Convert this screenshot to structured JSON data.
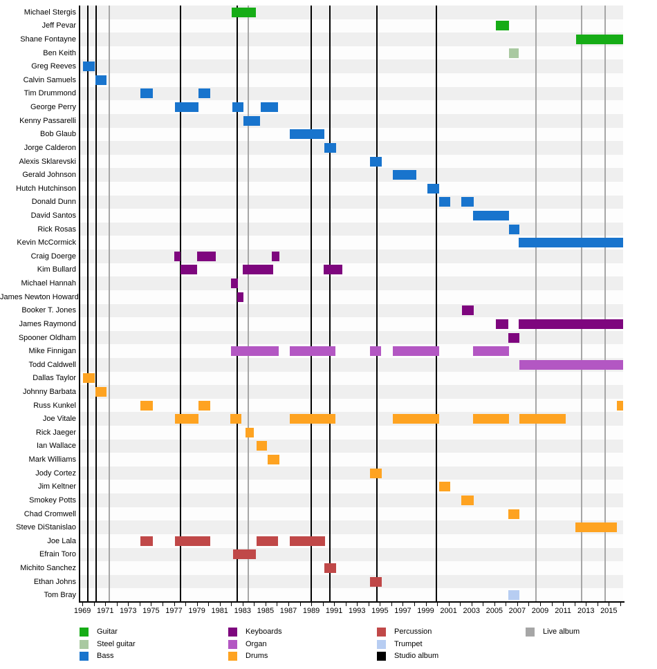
{
  "chart_data": {
    "type": "timeline",
    "description": "Band membership timeline by instrument, 1969-2016, with studio and live album release markers",
    "x_axis": {
      "start": 1968.75,
      "end": 2016.25,
      "label_years": [
        1969,
        1971,
        1973,
        1975,
        1977,
        1979,
        1981,
        1983,
        1985,
        1987,
        1989,
        1991,
        1993,
        1995,
        1997,
        1999,
        2001,
        2003,
        2005,
        2007,
        2009,
        2011,
        2013,
        2015
      ],
      "minor_tick_first": 1969,
      "minor_tick_last": 2016,
      "minor_tick_step": 1
    },
    "colors": {
      "guitar": "#16ac16",
      "steel_guitar": "#a9c9a1",
      "bass": "#1874cd",
      "keyboards": "#7e067e",
      "organ": "#b357c3",
      "drums": "#fea321",
      "percussion": "#c04848",
      "trumpet": "#b7cdf2",
      "studio_album": "#000000",
      "live_album": "#a6a6a6",
      "stripe_even": "#efefef",
      "stripe_odd": "#fdfdfd"
    },
    "albums": {
      "studio": [
        1969.5,
        1970.2,
        1977.6,
        1982.55,
        1989.0,
        1990.65,
        1994.75,
        1999.95
      ],
      "live": [
        1971.35,
        1983.5,
        2008.65,
        2012.65,
        2014.7
      ]
    },
    "members": [
      {
        "name": "Michael Stergis",
        "instrument": "guitar",
        "periods": [
          [
            1982.05,
            1984.15
          ]
        ]
      },
      {
        "name": "Jeff Pevar",
        "instrument": "guitar",
        "periods": [
          [
            2005.15,
            2006.25
          ]
        ]
      },
      {
        "name": "Shane Fontayne",
        "instrument": "guitar",
        "periods": [
          [
            2012.15,
            2016.25
          ]
        ]
      },
      {
        "name": "Ben Keith",
        "instrument": "steel_guitar",
        "periods": [
          [
            2006.25,
            2007.15
          ]
        ]
      },
      {
        "name": "Greg Reeves",
        "instrument": "bass",
        "periods": [
          [
            1969.05,
            1970.1
          ]
        ]
      },
      {
        "name": "Calvin Samuels",
        "instrument": "bass",
        "periods": [
          [
            1970.15,
            1971.1
          ]
        ]
      },
      {
        "name": "Tim Drummond",
        "instrument": "bass",
        "periods": [
          [
            1974.05,
            1975.15
          ],
          [
            1979.15,
            1980.15
          ]
        ]
      },
      {
        "name": "George Perry",
        "instrument": "bass",
        "periods": [
          [
            1977.1,
            1979.15
          ],
          [
            1982.1,
            1983.1
          ],
          [
            1984.6,
            1986.1
          ]
        ]
      },
      {
        "name": "Kenny Passarelli",
        "instrument": "bass",
        "periods": [
          [
            1983.1,
            1984.55
          ]
        ]
      },
      {
        "name": "Bob Glaub",
        "instrument": "bass",
        "periods": [
          [
            1987.15,
            1990.15
          ]
        ]
      },
      {
        "name": "Jorge Calderon",
        "instrument": "bass",
        "periods": [
          [
            1990.15,
            1991.15
          ]
        ]
      },
      {
        "name": "Alexis Sklarevski",
        "instrument": "bass",
        "periods": [
          [
            1994.15,
            1995.15
          ]
        ]
      },
      {
        "name": "Gerald Johnson",
        "instrument": "bass",
        "periods": [
          [
            1996.15,
            1998.2
          ]
        ]
      },
      {
        "name": "Hutch Hutchinson",
        "instrument": "bass",
        "periods": [
          [
            1999.15,
            2000.15
          ]
        ]
      },
      {
        "name": "Donald Dunn",
        "instrument": "bass",
        "periods": [
          [
            2000.2,
            2001.15
          ],
          [
            2002.1,
            2003.2
          ]
        ]
      },
      {
        "name": "David Santos",
        "instrument": "bass",
        "periods": [
          [
            2003.15,
            2006.25
          ]
        ]
      },
      {
        "name": "Rick Rosas",
        "instrument": "bass",
        "periods": [
          [
            2006.25,
            2007.2
          ]
        ]
      },
      {
        "name": "Kevin McCormick",
        "instrument": "bass",
        "periods": [
          [
            2007.1,
            2016.25
          ]
        ]
      },
      {
        "name": "Craig Doerge",
        "instrument": "keyboards",
        "periods": [
          [
            1977.05,
            1977.55
          ],
          [
            1979.05,
            1980.65
          ],
          [
            1985.55,
            1986.2
          ]
        ]
      },
      {
        "name": "Kim Bullard",
        "instrument": "keyboards",
        "periods": [
          [
            1977.6,
            1979.05
          ],
          [
            1983.0,
            1985.7
          ],
          [
            1990.1,
            1991.7
          ]
        ]
      },
      {
        "name": "Michael Hannah",
        "instrument": "keyboards",
        "periods": [
          [
            1982.0,
            1982.6
          ]
        ]
      },
      {
        "name": "James Newton Howard",
        "instrument": "keyboards",
        "periods": [
          [
            1982.55,
            1983.05
          ]
        ]
      },
      {
        "name": "Booker T. Jones",
        "instrument": "keyboards",
        "periods": [
          [
            2002.15,
            2003.2
          ]
        ]
      },
      {
        "name": "James Raymond",
        "instrument": "keyboards",
        "periods": [
          [
            2005.15,
            2006.2
          ],
          [
            2007.15,
            2016.25
          ]
        ]
      },
      {
        "name": "Spooner Oldham",
        "instrument": "keyboards",
        "periods": [
          [
            2006.2,
            2007.2
          ]
        ]
      },
      {
        "name": "Mike Finnigan",
        "instrument": "organ",
        "periods": [
          [
            1982.0,
            1986.15
          ],
          [
            1987.1,
            1991.1
          ],
          [
            1994.15,
            1995.1
          ],
          [
            1996.1,
            2000.2
          ],
          [
            2003.15,
            2006.25
          ]
        ]
      },
      {
        "name": "Todd Caldwell",
        "instrument": "organ",
        "periods": [
          [
            2007.2,
            2016.25
          ]
        ]
      },
      {
        "name": "Dallas Taylor",
        "instrument": "drums",
        "periods": [
          [
            1969.05,
            1970.1
          ]
        ]
      },
      {
        "name": "Johnny Barbata",
        "instrument": "drums",
        "periods": [
          [
            1970.15,
            1971.1
          ]
        ]
      },
      {
        "name": "Russ Kunkel",
        "instrument": "drums",
        "periods": [
          [
            1974.05,
            1975.15
          ],
          [
            1979.15,
            1980.15
          ],
          [
            2015.7,
            2016.25
          ]
        ]
      },
      {
        "name": "Joe Vitale",
        "instrument": "drums",
        "periods": [
          [
            1977.1,
            1979.15
          ],
          [
            1981.95,
            1982.9
          ],
          [
            1987.1,
            1991.1
          ],
          [
            1996.1,
            2000.2
          ],
          [
            2003.15,
            2006.25
          ],
          [
            2007.2,
            2011.25
          ]
        ]
      },
      {
        "name": "Rick Jaeger",
        "instrument": "drums",
        "periods": [
          [
            1983.25,
            1983.95
          ]
        ]
      },
      {
        "name": "Ian Wallace",
        "instrument": "drums",
        "periods": [
          [
            1984.25,
            1985.1
          ]
        ]
      },
      {
        "name": "Mark Williams",
        "instrument": "drums",
        "periods": [
          [
            1985.2,
            1986.2
          ]
        ]
      },
      {
        "name": "Jody Cortez",
        "instrument": "drums",
        "periods": [
          [
            1994.15,
            1995.15
          ]
        ]
      },
      {
        "name": "Jim Keltner",
        "instrument": "drums",
        "periods": [
          [
            2000.15,
            2001.15
          ]
        ]
      },
      {
        "name": "Smokey Potts",
        "instrument": "drums",
        "periods": [
          [
            2002.1,
            2003.2
          ]
        ]
      },
      {
        "name": "Chad Cromwell",
        "instrument": "drums",
        "periods": [
          [
            2006.2,
            2007.2
          ]
        ]
      },
      {
        "name": "Steve DiStanislao",
        "instrument": "drums",
        "periods": [
          [
            2012.1,
            2015.7
          ]
        ]
      },
      {
        "name": "Joe Lala",
        "instrument": "percussion",
        "periods": [
          [
            1974.05,
            1975.15
          ],
          [
            1977.1,
            1980.15
          ],
          [
            1984.25,
            1986.1
          ],
          [
            1987.1,
            1990.2
          ]
        ]
      },
      {
        "name": "Efrain Toro",
        "instrument": "percussion",
        "periods": [
          [
            1982.15,
            1984.15
          ]
        ]
      },
      {
        "name": "Michito Sanchez",
        "instrument": "percussion",
        "periods": [
          [
            1990.15,
            1991.15
          ]
        ]
      },
      {
        "name": "Ethan Johns",
        "instrument": "percussion",
        "periods": [
          [
            1994.15,
            1995.15
          ]
        ]
      },
      {
        "name": "Tom Bray",
        "instrument": "trumpet",
        "periods": [
          [
            2006.2,
            2007.2
          ]
        ]
      }
    ],
    "legend": {
      "columns": [
        [
          {
            "label": "Guitar",
            "color": "guitar"
          },
          {
            "label": "Steel guitar",
            "color": "steel_guitar"
          },
          {
            "label": "Bass",
            "color": "bass"
          }
        ],
        [
          {
            "label": "Keyboards",
            "color": "keyboards"
          },
          {
            "label": "Organ",
            "color": "organ"
          },
          {
            "label": "Drums",
            "color": "drums"
          }
        ],
        [
          {
            "label": "Percussion",
            "color": "percussion"
          },
          {
            "label": "Trumpet",
            "color": "trumpet"
          },
          {
            "label": "Studio album",
            "color": "studio_album"
          }
        ],
        [
          {
            "label": "Live album",
            "color": "live_album"
          }
        ]
      ]
    }
  }
}
